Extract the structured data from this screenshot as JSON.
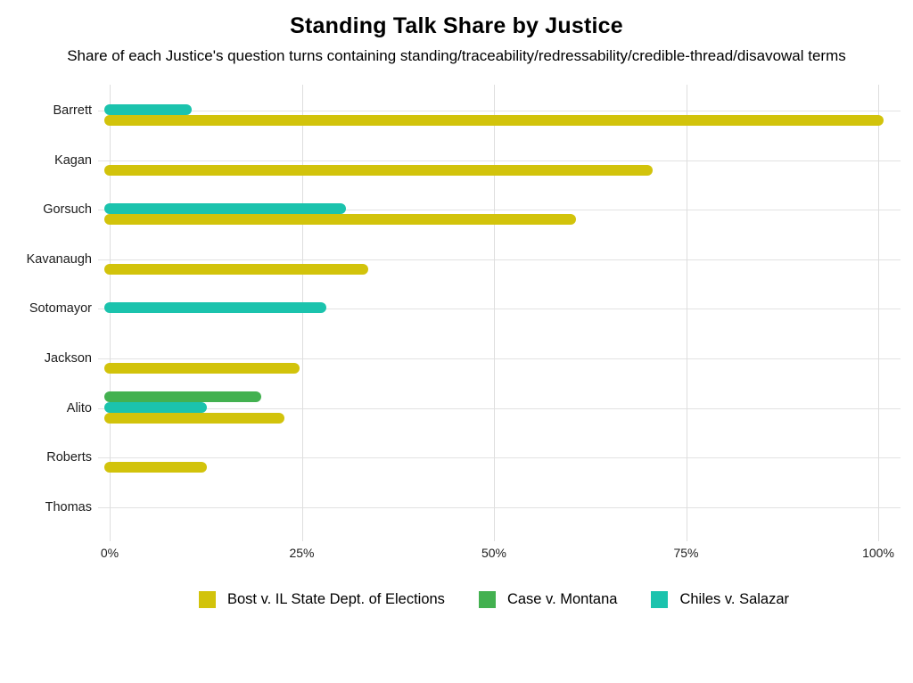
{
  "header": {
    "title": "Standing Talk Share by Justice",
    "subtitle": "Share of each Justice's question turns containing standing/traceability/redressability/credible-thread/disavowal terms"
  },
  "chart_data": {
    "type": "bar",
    "orientation": "horizontal",
    "title": "Standing Talk Share by Justice",
    "subtitle": "Share of each Justice's question turns containing standing/traceability/redressability/credible-thread/disavowal terms",
    "categories": [
      "Barrett",
      "Kagan",
      "Gorsuch",
      "Kavanaugh",
      "Sotomayor",
      "Jackson",
      "Alito",
      "Roberts",
      "Thomas"
    ],
    "series": [
      {
        "name": "Bost v. IL State Dept. of Elections",
        "color": "#d2c30b",
        "values": [
          100,
          70,
          60,
          33,
          null,
          24,
          22,
          12,
          null
        ]
      },
      {
        "name": "Case v. Montana",
        "color": "#43b150",
        "values": [
          null,
          null,
          null,
          null,
          null,
          null,
          19,
          null,
          null
        ]
      },
      {
        "name": "Chiles v. Salazar",
        "color": "#1bc3ad",
        "values": [
          10,
          null,
          30,
          null,
          27.5,
          null,
          12,
          null,
          null
        ]
      }
    ],
    "x_tick_labels": [
      "0%",
      "25%",
      "50%",
      "75%",
      "100%"
    ],
    "x_tick_values": [
      0,
      25,
      50,
      75,
      100
    ],
    "xlim": [
      0,
      100
    ],
    "unit": "percent of question turns",
    "grid": true,
    "legend_position": "bottom"
  },
  "colors": {
    "grid": "#dedede",
    "axis_text": "#1c1c1c",
    "background": "#ffffff"
  }
}
